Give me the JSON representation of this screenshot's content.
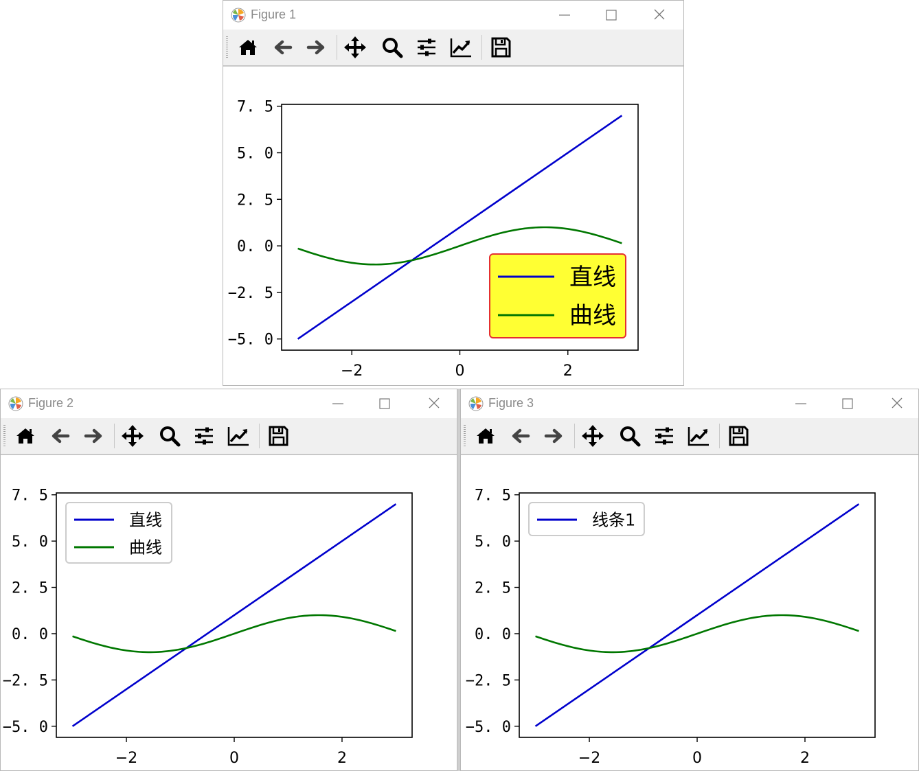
{
  "windows": [
    {
      "title": "Figure 1",
      "toolbar": [
        "home-icon",
        "back-arrow-icon",
        "forward-arrow-icon",
        "pan-icon",
        "zoom-icon",
        "configure-subplots-icon",
        "edit-axis-icon",
        "save-icon"
      ],
      "legend": {
        "entries": [
          "直线",
          "曲线"
        ],
        "location": "lower right",
        "facecolor": "#ffff33",
        "edgecolor": "#e53030"
      }
    },
    {
      "title": "Figure 2",
      "toolbar": [
        "home-icon",
        "back-arrow-icon",
        "forward-arrow-icon",
        "pan-icon",
        "zoom-icon",
        "configure-subplots-icon",
        "edit-axis-icon",
        "save-icon"
      ],
      "legend": {
        "entries": [
          "直线",
          "曲线"
        ],
        "location": "upper left",
        "facecolor": "#ffffff",
        "edgecolor": "#cccccc"
      }
    },
    {
      "title": "Figure 3",
      "toolbar": [
        "home-icon",
        "back-arrow-icon",
        "forward-arrow-icon",
        "pan-icon",
        "zoom-icon",
        "configure-subplots-icon",
        "edit-axis-icon",
        "save-icon"
      ],
      "legend": {
        "entries": [
          "线条1"
        ],
        "location": "upper left",
        "facecolor": "#ffffff",
        "edgecolor": "#cccccc"
      }
    }
  ],
  "chart_data": [
    {
      "type": "line",
      "figure": "Figure 1",
      "series": [
        {
          "name": "直线",
          "color": "#0000cc",
          "x": [
            -3,
            3
          ],
          "y": [
            -5,
            7
          ]
        },
        {
          "name": "曲线",
          "color": "#007700",
          "function": "sin(x)",
          "x_range": [
            -3,
            3
          ]
        }
      ],
      "xlim": [
        -3.3,
        3.3
      ],
      "ylim": [
        -5.6,
        7.6
      ],
      "xticks": [
        -2,
        0,
        2
      ],
      "xtick_labels": [
        "−2",
        "0",
        "2"
      ],
      "yticks": [
        -5,
        -2.5,
        0,
        2.5,
        5,
        7.5
      ],
      "ytick_labels": [
        "−5. 0",
        "−2. 5",
        "0. 0",
        "2. 5",
        "5. 0",
        "7. 5"
      ],
      "grid": false,
      "legend": "lower right"
    },
    {
      "type": "line",
      "figure": "Figure 2",
      "series": [
        {
          "name": "直线",
          "color": "#0000cc",
          "x": [
            -3,
            3
          ],
          "y": [
            -5,
            7
          ]
        },
        {
          "name": "曲线",
          "color": "#007700",
          "function": "sin(x)",
          "x_range": [
            -3,
            3
          ]
        }
      ],
      "xlim": [
        -3.3,
        3.3
      ],
      "ylim": [
        -5.6,
        7.6
      ],
      "xticks": [
        -2,
        0,
        2
      ],
      "xtick_labels": [
        "−2",
        "0",
        "2"
      ],
      "yticks": [
        -5,
        -2.5,
        0,
        2.5,
        5,
        7.5
      ],
      "ytick_labels": [
        "−5. 0",
        "−2. 5",
        "0. 0",
        "2. 5",
        "5. 0",
        "7. 5"
      ],
      "grid": false,
      "legend": "upper left"
    },
    {
      "type": "line",
      "figure": "Figure 3",
      "series": [
        {
          "name": "线条1",
          "color": "#0000cc",
          "x": [
            -3,
            3
          ],
          "y": [
            -5,
            7
          ]
        },
        {
          "color": "#007700",
          "function": "sin(x)",
          "x_range": [
            -3,
            3
          ]
        }
      ],
      "xlim": [
        -3.3,
        3.3
      ],
      "ylim": [
        -5.6,
        7.6
      ],
      "xticks": [
        -2,
        0,
        2
      ],
      "xtick_labels": [
        "−2",
        "0",
        "2"
      ],
      "yticks": [
        -5,
        -2.5,
        0,
        2.5,
        5,
        7.5
      ],
      "ytick_labels": [
        "−5. 0",
        "−2. 5",
        "0. 0",
        "2. 5",
        "5. 0",
        "7. 5"
      ],
      "grid": false,
      "legend": "upper left"
    }
  ]
}
